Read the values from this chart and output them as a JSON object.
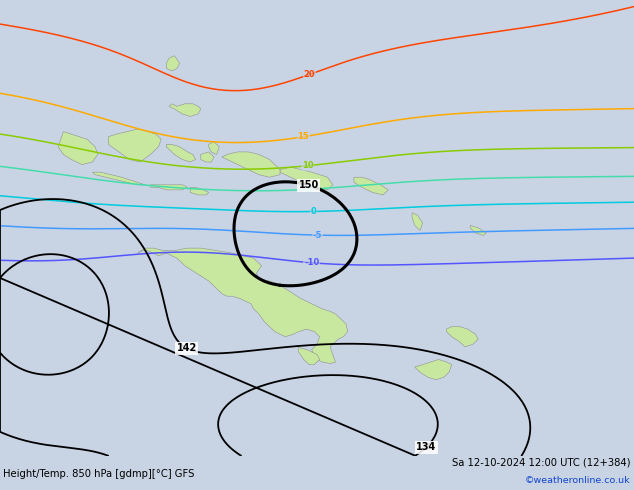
{
  "title_left": "Height/Temp. 850 hPa [gdmp][°C] GFS",
  "title_right": "Sa 12-10-2024 12:00 UTC (12+384)",
  "credit": "©weatheronline.co.uk",
  "ocean_color": "#c8d4e4",
  "land_color": "#c8e8a0",
  "land_edge_color": "#909090",
  "fig_width": 6.34,
  "fig_height": 4.9,
  "dpi": 100,
  "lon_min": 88,
  "lon_max": 208,
  "lat_min": -62,
  "lat_max": 28
}
